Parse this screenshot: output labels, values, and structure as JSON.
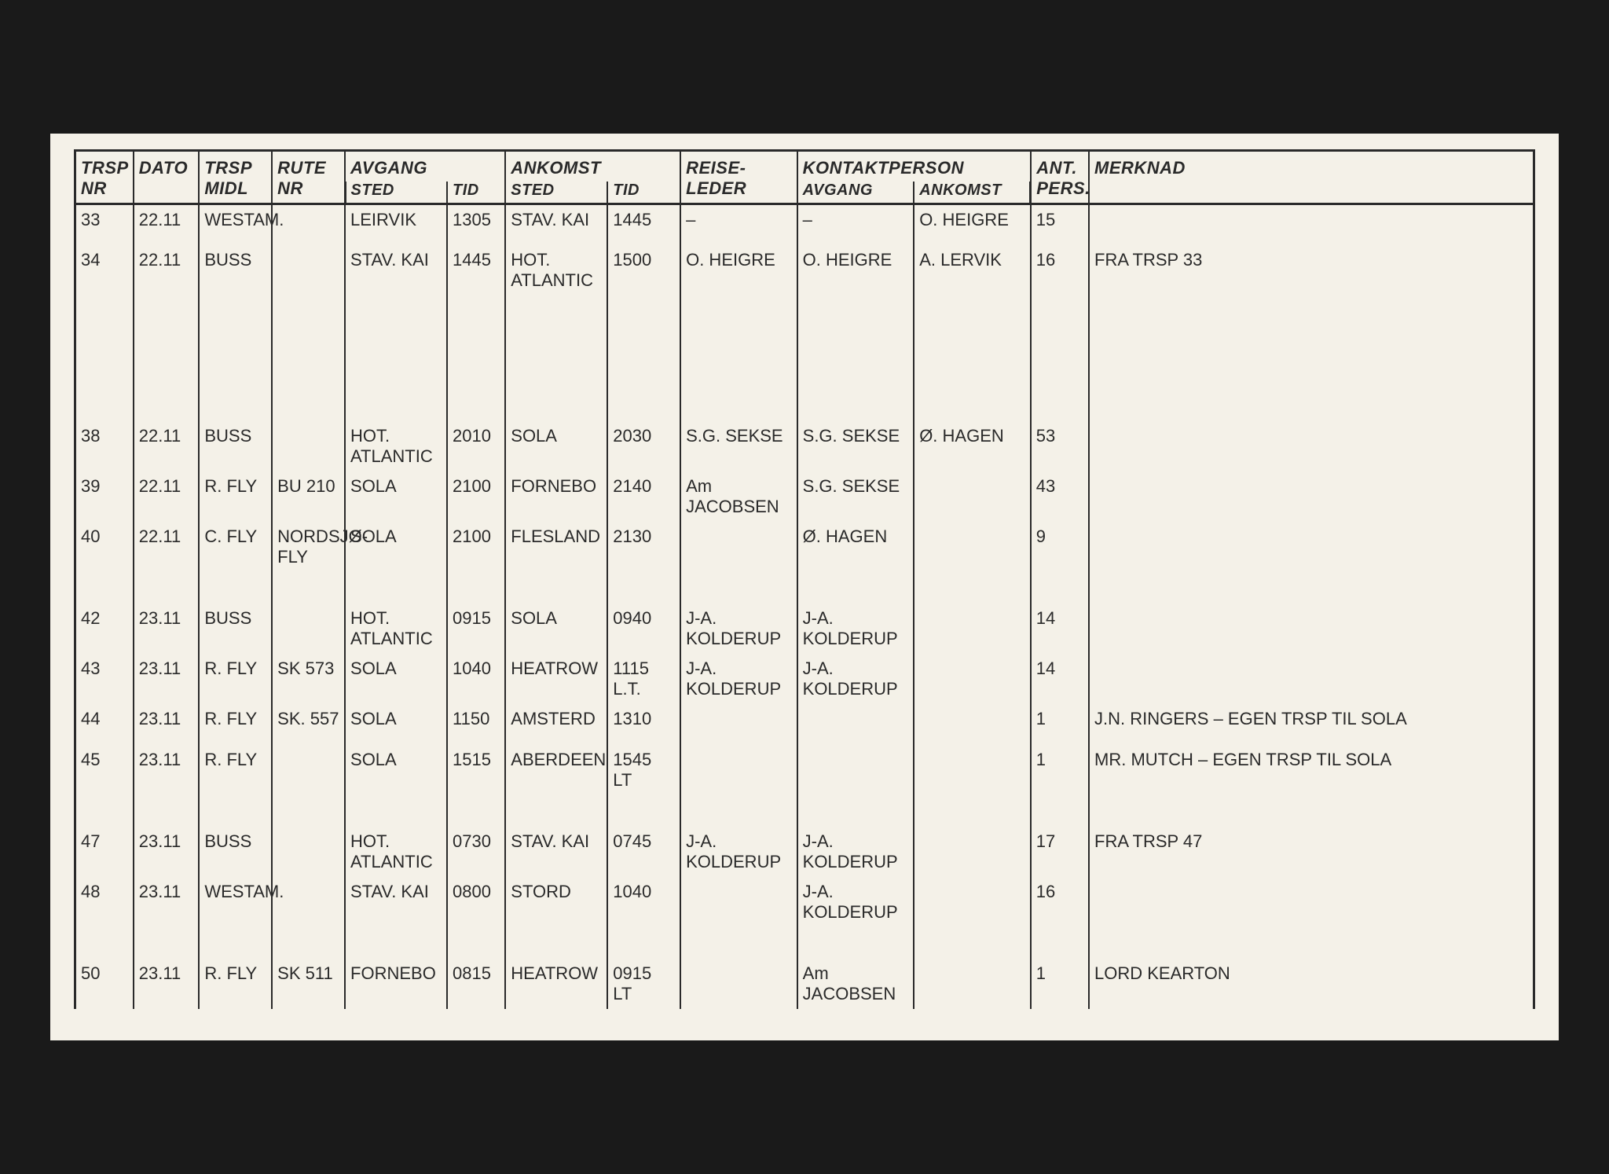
{
  "headers": {
    "trspnr1": "TRSP",
    "trspnr2": "NR",
    "dato": "DATO",
    "trspmidl1": "TRSP",
    "trspmidl2": "MIDL",
    "rutenr1": "RUTE",
    "rutenr2": "NR",
    "avgang": "AVGANG",
    "avg_sted": "STED",
    "avg_tid": "TID",
    "ankomst": "ANKOMST",
    "ank_sted": "STED",
    "ank_tid": "TID",
    "reiseleder1": "REISE-",
    "reiseleder2": "LEDER",
    "kontaktperson": "KONTAKTPERSON",
    "kontakt_avg": "AVGANG",
    "kontakt_ank": "ANKOMST",
    "antpers1": "ANT.",
    "antpers2": "PERS.",
    "merknad": "MERKNAD"
  },
  "rows": [
    {
      "nr": "33",
      "dato": "22.11",
      "midl": "WESTAM.",
      "rute": "",
      "avg_sted": "LEIRVIK",
      "avg_tid": "1305",
      "ank_sted": "STAV. KAI",
      "ank_tid": "1445",
      "leder": "–",
      "k_avg": "–",
      "k_ank": "O. HEIGRE",
      "pers": "15",
      "merk": ""
    },
    {
      "nr": "34",
      "dato": "22.11",
      "midl": "BUSS",
      "rute": "",
      "avg_sted": "STAV. KAI",
      "avg_tid": "1445",
      "ank_sted": "HOT. ATLANTIC",
      "ank_tid": "1500",
      "leder": "O. HEIGRE",
      "k_avg": "O. HEIGRE",
      "k_ank": "A. LERVIK",
      "pers": "16",
      "merk": "FRA TRSP 33"
    },
    {
      "spacer": "tall"
    },
    {
      "nr": "38",
      "dato": "22.11",
      "midl": "BUSS",
      "rute": "",
      "avg_sted": "HOT. ATLANTIC",
      "avg_tid": "2010",
      "ank_sted": "SOLA",
      "ank_tid": "2030",
      "leder": "S.G. SEKSE",
      "k_avg": "S.G. SEKSE",
      "k_ank": "Ø. HAGEN",
      "pers": "53",
      "merk": ""
    },
    {
      "nr": "39",
      "dato": "22.11",
      "midl": "R. FLY",
      "rute": "BU 210",
      "avg_sted": "SOLA",
      "avg_tid": "2100",
      "ank_sted": "FORNEBO",
      "ank_tid": "2140",
      "leder": "Am JACOBSEN",
      "k_avg": "S.G. SEKSE",
      "k_ank": "",
      "pers": "43",
      "merk": ""
    },
    {
      "nr": "40",
      "dato": "22.11",
      "midl": "C. FLY",
      "rute": "NORDSJØ-FLY",
      "avg_sted": "SOLA",
      "avg_tid": "2100",
      "ank_sted": "FLESLAND",
      "ank_tid": "2130",
      "leder": "",
      "k_avg": "Ø. HAGEN",
      "k_ank": "",
      "pers": "9",
      "merk": ""
    },
    {
      "spacer": "normal"
    },
    {
      "nr": "42",
      "dato": "23.11",
      "midl": "BUSS",
      "rute": "",
      "avg_sted": "HOT. ATLANTIC",
      "avg_tid": "0915",
      "ank_sted": "SOLA",
      "ank_tid": "0940",
      "leder": "J-A. KOLDERUP",
      "k_avg": "J-A. KOLDERUP",
      "k_ank": "",
      "pers": "14",
      "merk": ""
    },
    {
      "nr": "43",
      "dato": "23.11",
      "midl": "R. FLY",
      "rute": "SK 573",
      "avg_sted": "SOLA",
      "avg_tid": "1040",
      "ank_sted": "HEATROW",
      "ank_tid": "1115 L.T.",
      "leder": "J-A. KOLDERUP",
      "k_avg": "J-A. KOLDERUP",
      "k_ank": "",
      "pers": "14",
      "merk": ""
    },
    {
      "nr": "44",
      "dato": "23.11",
      "midl": "R. FLY",
      "rute": "SK. 557",
      "avg_sted": "SOLA",
      "avg_tid": "1150",
      "ank_sted": "AMSTERD",
      "ank_tid": "1310",
      "leder": "",
      "k_avg": "",
      "k_ank": "",
      "pers": "1",
      "merk": "J.N. RINGERS – EGEN TRSP TIL SOLA"
    },
    {
      "nr": "45",
      "dato": "23.11",
      "midl": "R. FLY",
      "rute": "",
      "avg_sted": "SOLA",
      "avg_tid": "1515",
      "ank_sted": "ABERDEEN",
      "ank_tid": "1545 LT",
      "leder": "",
      "k_avg": "",
      "k_ank": "",
      "pers": "1",
      "merk": "MR. MUTCH – EGEN TRSP TIL SOLA"
    },
    {
      "spacer": "normal"
    },
    {
      "nr": "47",
      "dato": "23.11",
      "midl": "BUSS",
      "rute": "",
      "avg_sted": "HOT. ATLANTIC",
      "avg_tid": "0730",
      "ank_sted": "STAV. KAI",
      "ank_tid": "0745",
      "leder": "J-A. KOLDERUP",
      "k_avg": "J-A. KOLDERUP",
      "k_ank": "",
      "pers": "17",
      "merk": "FRA TRSP 47"
    },
    {
      "nr": "48",
      "dato": "23.11",
      "midl": "WESTAM.",
      "rute": "",
      "avg_sted": "STAV. KAI",
      "avg_tid": "0800",
      "ank_sted": "STORD",
      "ank_tid": "1040",
      "leder": "",
      "k_avg": "J-A. KOLDERUP",
      "k_ank": "",
      "pers": "16",
      "merk": ""
    },
    {
      "spacer": "normal"
    },
    {
      "nr": "50",
      "dato": "23.11",
      "midl": "R. FLY",
      "rute": "SK 511",
      "avg_sted": "FORNEBO",
      "avg_tid": "0815",
      "ank_sted": "HEATROW",
      "ank_tid": "0915 LT",
      "leder": "",
      "k_avg": "Am JACOBSEN",
      "k_ank": "",
      "pers": "1",
      "merk": "LORD KEARTON"
    }
  ]
}
